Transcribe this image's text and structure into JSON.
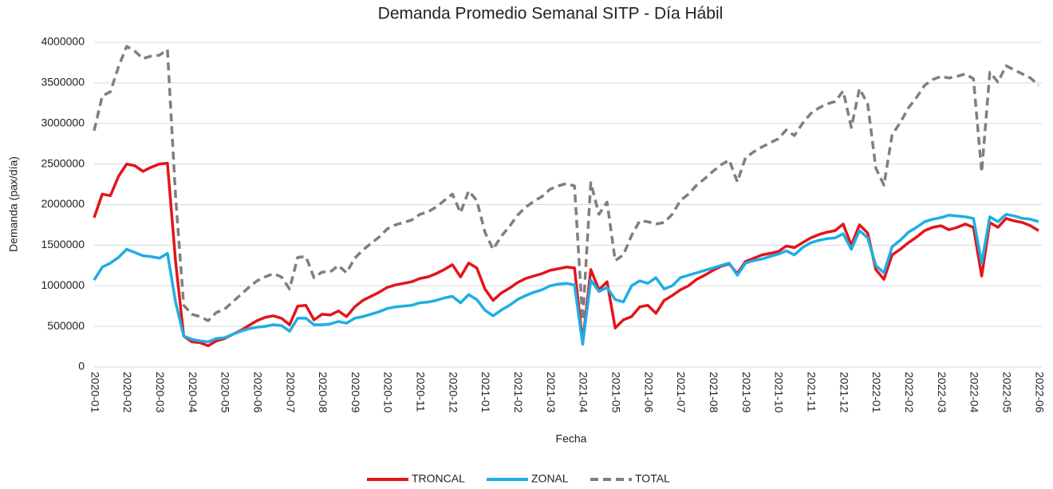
{
  "chart_data": {
    "type": "line",
    "title": "Demanda Promedio Semanal SITP - Día Hábil",
    "xlabel": "Fecha",
    "ylabel": "Demanda (pax/día)",
    "categories": [
      "2020-01",
      null,
      null,
      null,
      "2020-02",
      null,
      null,
      null,
      "2020-03",
      null,
      null,
      null,
      "2020-04",
      null,
      null,
      null,
      "2020-05",
      null,
      null,
      null,
      "2020-06",
      null,
      null,
      null,
      "2020-07",
      null,
      null,
      null,
      "2020-08",
      null,
      null,
      null,
      "2020-09",
      null,
      null,
      null,
      "2020-10",
      null,
      null,
      null,
      "2020-11",
      null,
      null,
      null,
      "2020-12",
      null,
      null,
      null,
      "2021-01",
      null,
      null,
      null,
      "2021-02",
      null,
      null,
      null,
      "2021-03",
      null,
      null,
      null,
      "2021-04",
      null,
      null,
      null,
      "2021-05",
      null,
      null,
      null,
      "2021-06",
      null,
      null,
      null,
      "2021-07",
      null,
      null,
      null,
      "2021-08",
      null,
      null,
      null,
      "2021-09",
      null,
      null,
      null,
      "2021-10",
      null,
      null,
      null,
      "2021-11",
      null,
      null,
      null,
      "2021-12",
      null,
      null,
      null,
      "2022-01",
      null,
      null,
      null,
      "2022-02",
      null,
      null,
      null,
      "2022-03",
      null,
      null,
      null,
      "2022-04",
      null,
      null,
      null,
      "2022-05",
      null,
      null,
      null,
      "2022-06"
    ],
    "ylim": [
      0,
      4000000
    ],
    "yticks": [
      0,
      500000,
      1000000,
      1500000,
      2000000,
      2500000,
      3000000,
      3500000,
      4000000
    ],
    "grid": true,
    "legend": "bottom",
    "series": [
      {
        "name": "TRONCAL",
        "color": "#e3151a",
        "dashed": false,
        "values": [
          1840000,
          2130000,
          2110000,
          2350000,
          2500000,
          2480000,
          2410000,
          2460000,
          2500000,
          2510000,
          1300000,
          380000,
          310000,
          300000,
          260000,
          320000,
          350000,
          400000,
          450000,
          510000,
          570000,
          610000,
          630000,
          600000,
          520000,
          750000,
          760000,
          580000,
          650000,
          640000,
          690000,
          620000,
          740000,
          820000,
          870000,
          920000,
          980000,
          1010000,
          1030000,
          1050000,
          1090000,
          1110000,
          1150000,
          1200000,
          1260000,
          1110000,
          1280000,
          1220000,
          960000,
          820000,
          910000,
          970000,
          1040000,
          1090000,
          1120000,
          1150000,
          1190000,
          1210000,
          1230000,
          1220000,
          300000,
          1200000,
          950000,
          1050000,
          480000,
          580000,
          620000,
          740000,
          760000,
          660000,
          820000,
          880000,
          950000,
          1000000,
          1080000,
          1130000,
          1190000,
          1240000,
          1270000,
          1150000,
          1300000,
          1340000,
          1380000,
          1400000,
          1420000,
          1490000,
          1470000,
          1530000,
          1590000,
          1630000,
          1660000,
          1680000,
          1760000,
          1500000,
          1750000,
          1650000,
          1200000,
          1080000,
          1380000,
          1450000,
          1530000,
          1600000,
          1680000,
          1720000,
          1740000,
          1690000,
          1720000,
          1760000,
          1720000,
          1120000,
          1780000,
          1720000,
          1830000,
          1800000,
          1780000,
          1740000,
          1680000
        ]
      },
      {
        "name": "ZONAL",
        "color": "#1eaee4",
        "dashed": false,
        "values": [
          1070000,
          1230000,
          1280000,
          1350000,
          1450000,
          1410000,
          1370000,
          1360000,
          1340000,
          1400000,
          800000,
          380000,
          340000,
          320000,
          310000,
          350000,
          360000,
          400000,
          440000,
          470000,
          490000,
          500000,
          520000,
          510000,
          440000,
          600000,
          600000,
          520000,
          520000,
          530000,
          560000,
          540000,
          600000,
          620000,
          650000,
          680000,
          720000,
          740000,
          750000,
          760000,
          790000,
          800000,
          820000,
          850000,
          870000,
          790000,
          890000,
          830000,
          700000,
          630000,
          700000,
          760000,
          830000,
          880000,
          920000,
          950000,
          1000000,
          1020000,
          1030000,
          1010000,
          280000,
          1070000,
          930000,
          980000,
          830000,
          800000,
          1000000,
          1060000,
          1030000,
          1100000,
          960000,
          1000000,
          1100000,
          1130000,
          1160000,
          1190000,
          1220000,
          1250000,
          1280000,
          1130000,
          1280000,
          1310000,
          1330000,
          1360000,
          1390000,
          1430000,
          1380000,
          1470000,
          1530000,
          1560000,
          1580000,
          1590000,
          1640000,
          1450000,
          1680000,
          1590000,
          1250000,
          1160000,
          1480000,
          1560000,
          1660000,
          1720000,
          1790000,
          1820000,
          1840000,
          1870000,
          1860000,
          1850000,
          1830000,
          1280000,
          1850000,
          1790000,
          1880000,
          1860000,
          1830000,
          1820000,
          1790000
        ]
      },
      {
        "name": "TOTAL",
        "color": "#7f7f7f",
        "dashed": true,
        "values": [
          2910000,
          3340000,
          3390000,
          3700000,
          3950000,
          3890000,
          3800000,
          3830000,
          3840000,
          3910000,
          2100000,
          760000,
          650000,
          620000,
          570000,
          670000,
          710000,
          800000,
          890000,
          980000,
          1060000,
          1110000,
          1150000,
          1110000,
          960000,
          1350000,
          1360000,
          1100000,
          1170000,
          1170000,
          1250000,
          1160000,
          1340000,
          1440000,
          1520000,
          1600000,
          1700000,
          1750000,
          1780000,
          1810000,
          1880000,
          1910000,
          1970000,
          2050000,
          2130000,
          1900000,
          2170000,
          2050000,
          1660000,
          1450000,
          1610000,
          1730000,
          1870000,
          1970000,
          2040000,
          2100000,
          2190000,
          2230000,
          2260000,
          2230000,
          580000,
          2270000,
          1880000,
          2030000,
          1310000,
          1380000,
          1620000,
          1800000,
          1790000,
          1760000,
          1780000,
          1880000,
          2050000,
          2130000,
          2240000,
          2320000,
          2410000,
          2490000,
          2550000,
          2280000,
          2580000,
          2650000,
          2710000,
          2760000,
          2810000,
          2920000,
          2850000,
          3000000,
          3120000,
          3190000,
          3240000,
          3270000,
          3400000,
          2950000,
          3430000,
          3240000,
          2450000,
          2240000,
          2860000,
          3010000,
          3190000,
          3320000,
          3470000,
          3540000,
          3580000,
          3560000,
          3580000,
          3610000,
          3550000,
          2400000,
          3630000,
          3510000,
          3710000,
          3660000,
          3610000,
          3560000,
          3470000
        ]
      }
    ]
  }
}
